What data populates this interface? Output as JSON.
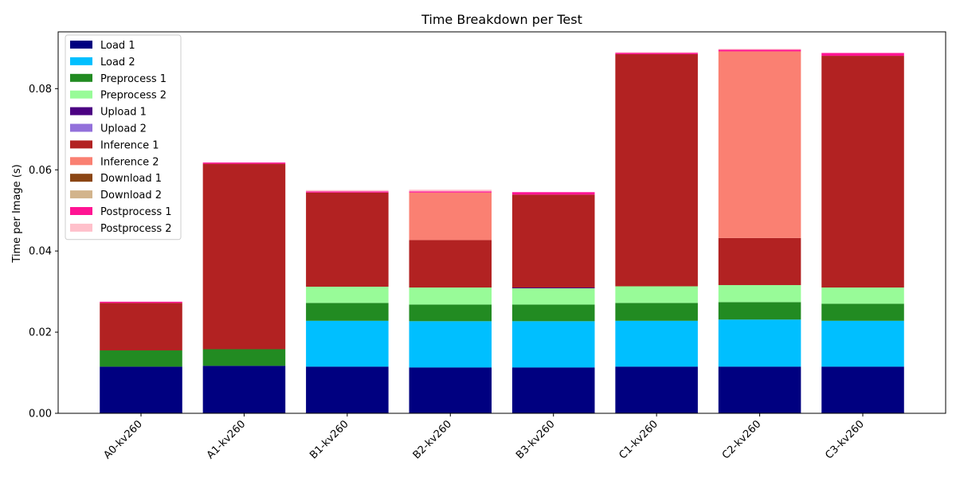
{
  "chart_data": {
    "type": "bar",
    "stacked": true,
    "title": "Time Breakdown per Test",
    "xlabel": "",
    "ylabel": "Time per Image (s)",
    "ylim": [
      0,
      0.094
    ],
    "yticks": [
      "0.00",
      "0.02",
      "0.04",
      "0.06",
      "0.08"
    ],
    "ytick_values": [
      0,
      0.02,
      0.04,
      0.06,
      0.08
    ],
    "grid": false,
    "legend_position": "top-left",
    "categories": [
      "A0-kv260",
      "A1-kv260",
      "B1-kv260",
      "B2-kv260",
      "B3-kv260",
      "C1-kv260",
      "C2-kv260",
      "C3-kv260"
    ],
    "series": [
      {
        "name": "Load 1",
        "color": "#000080",
        "values": [
          0.0115,
          0.0117,
          0.0115,
          0.0113,
          0.0113,
          0.0115,
          0.0115,
          0.0115
        ]
      },
      {
        "name": "Load 2",
        "color": "#00bfff",
        "values": [
          0,
          0,
          0.0113,
          0.0114,
          0.0114,
          0.0113,
          0.0116,
          0.0113
        ]
      },
      {
        "name": "Preprocess 1",
        "color": "#228b22",
        "values": [
          0.004,
          0.0041,
          0.0044,
          0.0041,
          0.0041,
          0.0044,
          0.0043,
          0.0042
        ]
      },
      {
        "name": "Preprocess 2",
        "color": "#98fb98",
        "values": [
          0,
          0,
          0.004,
          0.0042,
          0.004,
          0.0041,
          0.0042,
          0.004
        ]
      },
      {
        "name": "Upload 1",
        "color": "#4b0082",
        "values": [
          0,
          0,
          0,
          0,
          0.0002,
          0,
          0,
          0
        ]
      },
      {
        "name": "Upload 2",
        "color": "#9370db",
        "values": [
          0,
          0,
          0,
          0,
          0,
          0,
          0,
          0
        ]
      },
      {
        "name": "Inference 1",
        "color": "#b22222",
        "values": [
          0.0117,
          0.0457,
          0.0232,
          0.0117,
          0.0229,
          0.0572,
          0.0116,
          0.0571
        ]
      },
      {
        "name": "Inference 2",
        "color": "#fa8072",
        "values": [
          0,
          0,
          0,
          0.0117,
          0,
          0,
          0.046,
          0
        ]
      },
      {
        "name": "Download 1",
        "color": "#8b4513",
        "values": [
          0,
          0,
          0,
          0,
          0,
          0,
          0,
          0
        ]
      },
      {
        "name": "Download 2",
        "color": "#d2b48c",
        "values": [
          0,
          0,
          0,
          0,
          0,
          0,
          0,
          0
        ]
      },
      {
        "name": "Postprocess 1",
        "color": "#ff1493",
        "values": [
          0.0003,
          0.0003,
          0.0003,
          0.0003,
          0.0006,
          0.0003,
          0.0004,
          0.0007
        ]
      },
      {
        "name": "Postprocess 2",
        "color": "#ffc0cb",
        "values": [
          0,
          0,
          0.0003,
          0.0004,
          0,
          0.0002,
          0.0002,
          0
        ]
      }
    ]
  }
}
